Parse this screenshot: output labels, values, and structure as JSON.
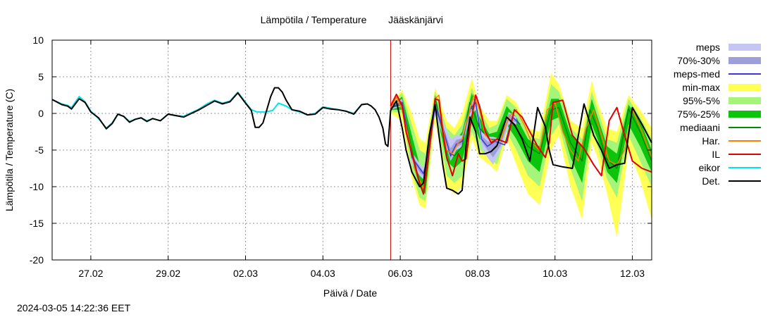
{
  "chart_data": {
    "type": "line",
    "title": "Lämpötila / Temperature",
    "subtitle": "Jääskänjärvi",
    "xlabel": "Päivä / Date",
    "ylabel": "Lämpötila / Temperature (C)",
    "xlim": [
      0,
      15.5
    ],
    "ylim": [
      -20,
      10
    ],
    "grid": true,
    "legend_position": "right",
    "x_ticks": [
      {
        "x": 1,
        "label": "27.02"
      },
      {
        "x": 3,
        "label": "29.02"
      },
      {
        "x": 5,
        "label": "02.03"
      },
      {
        "x": 7,
        "label": "04.03"
      },
      {
        "x": 9,
        "label": "06.03"
      },
      {
        "x": 11,
        "label": "08.03"
      },
      {
        "x": 13,
        "label": "10.03"
      },
      {
        "x": 15,
        "label": "12.03"
      }
    ],
    "y_ticks": [
      10,
      5,
      0,
      -5,
      -10,
      -15,
      -20
    ],
    "forecast_start_x": 8.75,
    "colors": {
      "meps": "#c6c6f5",
      "p70_30": "#9e9ed9",
      "meps_med": "#3a3ad6",
      "minmax": "#ffff55",
      "p95_5": "#a5f57a",
      "p75_25": "#0bc40b",
      "mediaani": "#008c00",
      "har": "#ff8000",
      "il": "#e00000",
      "eikor": "#00e5ee",
      "det": "#000000",
      "now_line": "#cc0000"
    },
    "legend": [
      {
        "key": "meps",
        "label": "meps",
        "kind": "box"
      },
      {
        "key": "p70_30",
        "label": "70%-30%",
        "kind": "box"
      },
      {
        "key": "meps_med",
        "label": "meps-med",
        "kind": "line"
      },
      {
        "key": "minmax",
        "label": "min-max",
        "kind": "box"
      },
      {
        "key": "p95_5",
        "label": "95%-5%",
        "kind": "box"
      },
      {
        "key": "p75_25",
        "label": "75%-25%",
        "kind": "box"
      },
      {
        "key": "mediaani",
        "label": "mediaani",
        "kind": "line"
      },
      {
        "key": "har",
        "label": "Har.",
        "kind": "line"
      },
      {
        "key": "il",
        "label": "IL",
        "kind": "line"
      },
      {
        "key": "eikor",
        "label": "eikor",
        "kind": "line"
      },
      {
        "key": "det",
        "label": "Det.",
        "kind": "line"
      }
    ],
    "det": {
      "x": [
        0,
        0.25,
        0.4,
        0.5,
        0.7,
        0.85,
        1.0,
        1.2,
        1.4,
        1.55,
        1.7,
        1.85,
        2.0,
        2.15,
        2.3,
        2.45,
        2.6,
        2.8,
        3.0,
        3.2,
        3.4,
        3.6,
        3.8,
        4.0,
        4.2,
        4.4,
        4.6,
        4.8,
        5.0,
        5.15,
        5.25,
        5.35,
        5.45,
        5.55,
        5.65,
        5.75,
        5.85,
        5.95,
        6.05,
        6.2,
        6.4,
        6.6,
        6.8,
        7.0,
        7.2,
        7.4,
        7.6,
        7.8,
        8.0,
        8.15,
        8.25,
        8.35,
        8.45,
        8.55,
        8.62,
        8.68,
        8.75,
        8.9,
        9.05,
        9.15,
        9.3,
        9.5,
        9.6,
        9.75,
        9.9,
        10.0,
        10.1,
        10.2,
        10.35,
        10.5,
        10.6,
        10.7,
        10.8,
        10.95,
        11.05,
        11.2,
        11.35,
        11.5,
        11.75,
        11.95,
        12.15,
        12.35,
        12.55,
        12.75,
        12.85,
        12.95,
        13.2,
        13.45,
        13.75,
        14.0,
        14.2,
        14.4,
        14.6,
        14.8,
        15.0,
        15.25,
        15.5
      ],
      "y": [
        1.9,
        1.2,
        1.0,
        0.6,
        2.0,
        1.5,
        0.2,
        -0.6,
        -2.1,
        -1.4,
        -0.1,
        -0.4,
        -1.2,
        -0.8,
        -0.6,
        -1.1,
        -0.7,
        -1.0,
        -0.1,
        -0.3,
        -0.5,
        0.0,
        0.5,
        1.1,
        1.7,
        1.3,
        1.6,
        2.8,
        1.4,
        0.4,
        -1.9,
        -1.9,
        -1.3,
        0.5,
        2.3,
        3.5,
        3.5,
        2.9,
        1.8,
        0.5,
        0.3,
        -0.2,
        -0.1,
        0.8,
        0.6,
        0.5,
        0.3,
        -0.1,
        1.2,
        1.3,
        1.0,
        0.5,
        -0.5,
        -2.0,
        -4.2,
        -4.5,
        0.4,
        1.7,
        -2.0,
        -5.0,
        -8.0,
        -10.0,
        -9.5,
        -3.0,
        1.2,
        -3.0,
        -7.0,
        -10.2,
        -10.5,
        -11.0,
        -10.5,
        -4.5,
        -0.5,
        -2.5,
        -5.5,
        -5.5,
        -5.2,
        -4.4,
        -0.5,
        -1.5,
        -3.5,
        -6.5,
        0.8,
        -1.8,
        -5.0,
        -7.0,
        -7.3,
        -7.5,
        1.3,
        -3.0,
        -5.0,
        -7.5,
        -7.0,
        -6.8,
        0.8,
        -1.5,
        -4.0
      ]
    },
    "eikor": {
      "x": [
        0,
        0.25,
        0.4,
        0.5,
        0.7,
        0.85,
        1.0,
        1.2,
        1.4,
        1.55,
        1.7,
        1.85,
        2.0,
        2.15,
        2.3,
        2.45,
        2.6,
        2.8,
        3.0,
        3.2,
        3.4,
        3.6,
        3.8,
        4.0,
        4.2,
        4.4,
        4.6,
        4.8,
        5.0,
        5.15,
        5.3,
        5.5,
        5.7,
        5.85,
        6.05,
        6.2,
        6.4,
        6.6,
        6.8,
        7.0,
        7.2,
        7.4,
        7.6,
        7.8,
        8.0,
        8.1
      ],
      "y": [
        1.9,
        1.3,
        1.1,
        0.8,
        2.3,
        1.6,
        0.3,
        -0.7,
        -2.0,
        -1.3,
        -0.1,
        -0.4,
        -1.1,
        -0.8,
        -0.6,
        -1.0,
        -0.7,
        -1.0,
        -0.1,
        -0.3,
        -0.4,
        0.1,
        0.6,
        1.3,
        1.8,
        1.4,
        1.7,
        2.9,
        1.5,
        0.5,
        0.2,
        0.2,
        0.4,
        1.4,
        1.0,
        0.5,
        0.2,
        -0.2,
        0.0,
        0.9,
        0.7,
        0.5,
        0.3,
        0.0,
        1.2,
        1.3
      ]
    },
    "il": {
      "x": [
        8.75,
        8.9,
        9.05,
        9.15,
        9.3,
        9.5,
        9.6,
        9.75,
        9.9,
        10.0,
        10.1,
        10.2,
        10.35,
        10.5,
        10.6,
        10.7,
        10.8,
        10.95,
        11.05,
        11.2,
        11.35,
        11.5,
        11.75,
        11.95,
        12.15,
        12.35,
        12.55,
        12.75,
        12.85,
        12.95,
        13.2,
        13.45,
        13.75,
        14.0,
        14.2,
        14.4,
        14.6,
        14.8,
        15.0,
        15.25,
        15.5
      ],
      "y": [
        1.0,
        2.6,
        1.0,
        -2.5,
        -5.5,
        -9.5,
        -11.0,
        -5.0,
        2.0,
        1.8,
        -2.5,
        -6.0,
        -8.5,
        -5.5,
        -6.5,
        -6.2,
        -2.0,
        2.5,
        1.0,
        -2.5,
        -4.0,
        -3.5,
        -4.0,
        0.5,
        -0.5,
        -2.5,
        -4.5,
        -6.0,
        -4.0,
        1.5,
        1.8,
        -3.0,
        -4.8,
        -7.0,
        -8.5,
        -1.0,
        0.8,
        -3.0,
        -6.5,
        -7.5,
        -8.0
      ]
    },
    "har": {
      "x": [
        8.75,
        8.9,
        9.05,
        9.2,
        9.4,
        9.6,
        9.75,
        9.9,
        10.0,
        10.1,
        10.2,
        10.35,
        10.5,
        10.6,
        10.75,
        10.9,
        11.05,
        11.2,
        11.4,
        11.6,
        11.8,
        12.0,
        12.2,
        12.4,
        12.6,
        12.8,
        13.0,
        13.2,
        13.4,
        13.6,
        13.8,
        14.0,
        14.2,
        14.4,
        14.6,
        14.8,
        15.0,
        15.25,
        15.5
      ],
      "y": [
        0.8,
        2.2,
        0.5,
        -3.0,
        -8.0,
        -10.2,
        -5.0,
        2.0,
        2.5,
        -2.0,
        -5.0,
        -5.5,
        -4.0,
        -3.5,
        -0.5,
        2.5,
        0.5,
        -3.0,
        -3.8,
        -3.5,
        -0.5,
        0.5,
        -1.5,
        -4.0,
        -5.0,
        0.5,
        1.5,
        -2.5,
        -5.0,
        -6.5,
        -2.0,
        0.5,
        -3.0,
        -6.5,
        -7.0,
        -5.0,
        0.5,
        -2.5,
        -6.0
      ]
    },
    "mediaani": {
      "x": [
        8.75,
        9.05,
        9.3,
        9.5,
        9.6,
        9.9,
        10.2,
        10.4,
        10.6,
        10.8,
        11.05,
        11.3,
        11.5,
        11.75,
        12.0,
        12.3,
        12.6,
        12.9,
        13.1,
        13.4,
        13.7,
        13.9,
        14.1,
        14.3,
        14.6,
        14.9,
        15.2,
        15.5
      ],
      "y": [
        0.8,
        1.2,
        -5.0,
        -9.5,
        -10.0,
        2.0,
        -5.0,
        -5.8,
        -4.5,
        1.5,
        -2.0,
        -3.5,
        -3.6,
        -0.5,
        -2.0,
        -4.5,
        -5.5,
        0.5,
        0.8,
        -4.0,
        -6.5,
        0.5,
        -2.0,
        -6.0,
        -7.5,
        0.6,
        -2.5,
        -6.5
      ]
    },
    "meps_med": {
      "x": [
        8.75,
        9.05,
        9.3,
        9.5,
        9.6,
        9.75,
        9.9,
        10.1,
        10.3,
        10.45,
        10.6,
        10.8,
        10.95,
        11.1,
        11.25,
        11.45,
        11.7,
        11.9,
        12.1
      ],
      "y": [
        0.8,
        1.5,
        -6.0,
        -7.5,
        -8.2,
        -5.0,
        1.0,
        -2.0,
        -5.8,
        -4.2,
        -3.8,
        0.5,
        1.5,
        -3.5,
        -4.5,
        -3.8,
        -4.3,
        -0.5,
        -1.5
      ]
    },
    "bands": {
      "x": [
        8.75,
        9.05,
        9.3,
        9.5,
        9.65,
        9.9,
        10.2,
        10.4,
        10.6,
        10.85,
        11.05,
        11.3,
        11.5,
        11.75,
        12.0,
        12.3,
        12.6,
        12.9,
        13.1,
        13.4,
        13.7,
        13.95,
        14.1,
        14.35,
        14.6,
        14.9,
        15.2,
        15.5
      ],
      "minmax_lo": [
        0.0,
        -1.0,
        -9.0,
        -12.5,
        -13.0,
        -1.0,
        -10.0,
        -11.0,
        -10.0,
        -3.5,
        -6.0,
        -7.0,
        -8.0,
        -3.5,
        -7.0,
        -11.0,
        -12.5,
        -5.0,
        -3.0,
        -10.0,
        -14.5,
        -4.0,
        -6.0,
        -11.0,
        -17.0,
        -5.0,
        -9.0,
        -14.5
      ],
      "minmax_hi": [
        1.5,
        3.2,
        0.0,
        -3.5,
        -4.0,
        3.5,
        -1.0,
        -2.0,
        0.0,
        4.8,
        1.0,
        -1.0,
        -1.0,
        2.5,
        1.5,
        -2.0,
        -2.5,
        5.5,
        4.0,
        -1.0,
        -2.0,
        4.5,
        1.5,
        -2.0,
        -2.5,
        2.5,
        0.5,
        -2.0
      ],
      "p95_lo": [
        0.3,
        0.0,
        -8.0,
        -11.5,
        -12.0,
        0.0,
        -8.5,
        -9.5,
        -8.5,
        -2.5,
        -5.0,
        -6.0,
        -7.0,
        -2.5,
        -5.0,
        -8.5,
        -10.0,
        -3.0,
        -1.5,
        -7.5,
        -12.0,
        -2.5,
        -4.5,
        -9.0,
        -11.5,
        -3.0,
        -6.5,
        -10.0
      ],
      "p95_hi": [
        1.3,
        2.8,
        -1.5,
        -5.0,
        -5.5,
        3.0,
        -2.0,
        -3.0,
        -1.5,
        3.5,
        0.5,
        -2.0,
        -1.5,
        2.0,
        0.8,
        -3.0,
        -3.5,
        4.0,
        3.0,
        -2.0,
        -3.5,
        3.0,
        0.5,
        -3.5,
        -4.0,
        2.0,
        -0.5,
        -3.5
      ],
      "p75_lo": [
        0.5,
        0.5,
        -6.5,
        -10.0,
        -11.0,
        1.0,
        -6.5,
        -7.5,
        -6.5,
        -1.0,
        -3.5,
        -4.5,
        -5.0,
        -1.5,
        -3.5,
        -6.5,
        -8.0,
        -1.0,
        -0.5,
        -6.0,
        -9.5,
        -1.5,
        -3.5,
        -8.0,
        -9.5,
        -1.5,
        -4.5,
        -8.0
      ],
      "p75_hi": [
        1.1,
        2.3,
        -3.0,
        -7.0,
        -8.0,
        2.5,
        -3.5,
        -4.0,
        -2.5,
        2.8,
        -0.5,
        -2.8,
        -2.5,
        1.0,
        -0.5,
        -3.5,
        -4.5,
        2.0,
        2.0,
        -2.8,
        -4.5,
        2.0,
        -0.5,
        -4.5,
        -5.5,
        1.2,
        -1.0,
        -5.0
      ]
    },
    "meps_band": {
      "x": [
        8.75,
        9.05,
        9.3,
        9.5,
        9.6,
        9.75,
        9.9,
        10.1,
        10.3,
        10.45,
        10.6,
        10.8,
        10.95,
        11.1,
        11.25,
        11.4,
        11.6,
        11.8,
        12.0
      ],
      "lo": [
        0.5,
        1.0,
        -6.8,
        -8.5,
        -9.0,
        -6.0,
        0.0,
        -3.0,
        -6.5,
        -5.0,
        -4.6,
        -0.5,
        0.5,
        -4.5,
        -6.0,
        -7.0,
        -4.8,
        -1.5,
        -1.5
      ],
      "hi": [
        1.0,
        2.0,
        -5.3,
        -6.8,
        -7.5,
        -4.0,
        1.8,
        -1.0,
        -3.5,
        -3.0,
        -3.0,
        1.3,
        2.2,
        -2.5,
        -3.2,
        -3.2,
        -3.5,
        0.2,
        -0.5
      ],
      "p70_lo": [
        0.6,
        1.2,
        -6.3,
        -8.0,
        -8.5,
        -5.5,
        0.5,
        -2.5,
        -6.2,
        -4.6,
        -4.2,
        0.0,
        1.0,
        -3.8,
        -5.0,
        -6.0,
        -4.4,
        -1.0,
        -1.2
      ],
      "p70_hi": [
        0.9,
        1.8,
        -5.7,
        -7.2,
        -8.0,
        -4.5,
        1.4,
        -1.5,
        -4.8,
        -3.6,
        -3.4,
        0.9,
        1.8,
        -3.0,
        -3.8,
        -4.0,
        -3.8,
        0.0,
        -0.8
      ]
    }
  },
  "footer": {
    "timestamp": "2024-03-05 14:22:36 EET"
  }
}
